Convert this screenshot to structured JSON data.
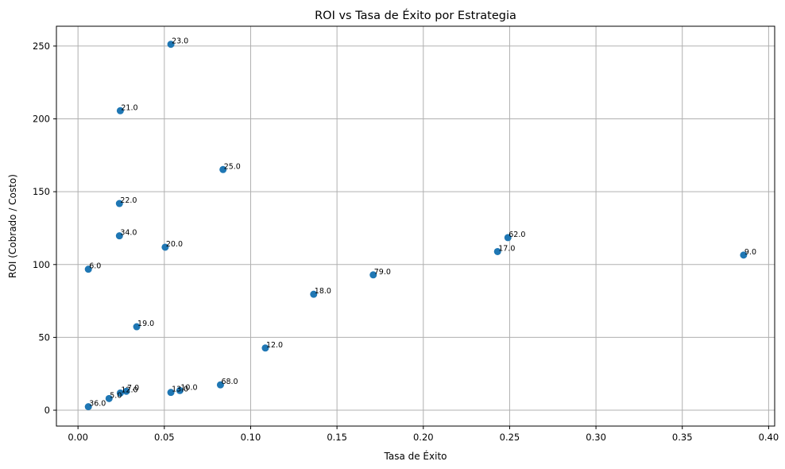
{
  "chart_data": {
    "type": "scatter",
    "title": "ROI vs Tasa de Éxito por Estrategia",
    "xlabel": "Tasa de Éxito",
    "ylabel": "ROI (Cobrado / Costo)",
    "xlim": [
      -0.0125,
      0.4035
    ],
    "ylim": [
      -10.9,
      263.6
    ],
    "xticks": [
      0.0,
      0.05,
      0.1,
      0.15,
      0.2,
      0.25,
      0.3,
      0.35,
      0.4
    ],
    "xtick_labels": [
      "0.00",
      "0.05",
      "0.10",
      "0.15",
      "0.20",
      "0.25",
      "0.30",
      "0.35",
      "0.40"
    ],
    "yticks": [
      0,
      50,
      100,
      150,
      200,
      250
    ],
    "ytick_labels": [
      "0",
      "50",
      "100",
      "150",
      "200",
      "250"
    ],
    "grid": true,
    "color": "#1f77b4",
    "points": [
      {
        "x": 0.0538,
        "y": 251.2,
        "label": "23.0"
      },
      {
        "x": 0.0245,
        "y": 205.6,
        "label": "21.0"
      },
      {
        "x": 0.084,
        "y": 165.2,
        "label": "25.0"
      },
      {
        "x": 0.024,
        "y": 141.9,
        "label": "22.0"
      },
      {
        "x": 0.024,
        "y": 119.7,
        "label": "34.0"
      },
      {
        "x": 0.0505,
        "y": 111.9,
        "label": "20.0"
      },
      {
        "x": 0.006,
        "y": 96.8,
        "label": "6.0"
      },
      {
        "x": 0.249,
        "y": 118.5,
        "label": "62.0"
      },
      {
        "x": 0.243,
        "y": 108.9,
        "label": "17.0"
      },
      {
        "x": 0.3855,
        "y": 106.5,
        "label": "9.0"
      },
      {
        "x": 0.171,
        "y": 92.9,
        "label": "79.0"
      },
      {
        "x": 0.1365,
        "y": 79.6,
        "label": "18.0"
      },
      {
        "x": 0.034,
        "y": 57.3,
        "label": "19.0"
      },
      {
        "x": 0.1085,
        "y": 42.7,
        "label": "12.0"
      },
      {
        "x": 0.0825,
        "y": 17.4,
        "label": "68.0"
      },
      {
        "x": 0.059,
        "y": 13.5,
        "label": "10.0"
      },
      {
        "x": 0.0538,
        "y": 12.2,
        "label": "13.0"
      },
      {
        "x": 0.028,
        "y": 13.0,
        "label": "7.0"
      },
      {
        "x": 0.0245,
        "y": 11.8,
        "label": "12.0"
      },
      {
        "x": 0.018,
        "y": 8.0,
        "label": "5.0"
      },
      {
        "x": 0.006,
        "y": 2.4,
        "label": "36.0"
      }
    ]
  }
}
